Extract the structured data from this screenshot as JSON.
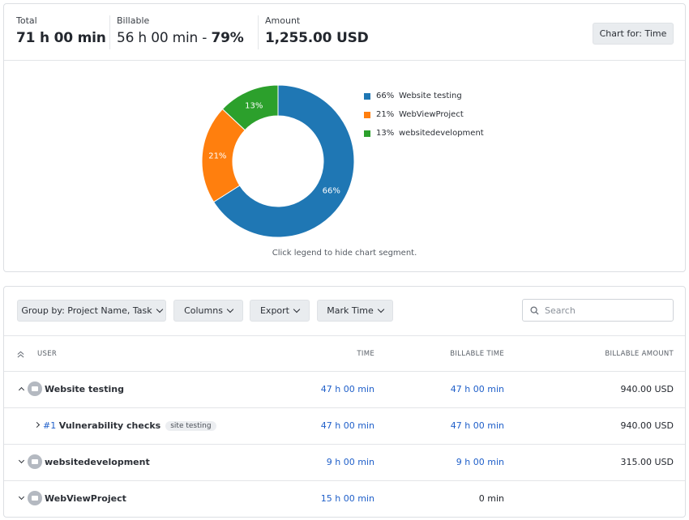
{
  "summary": {
    "total": {
      "label": "Total",
      "value": "71 h 00 min"
    },
    "billable": {
      "label": "Billable",
      "value": "56 h 00 min - ",
      "percent": "79%"
    },
    "amount": {
      "label": "Amount",
      "value": "1,255.00 USD"
    },
    "chart_for_button": "Chart for: Time"
  },
  "chart_data": {
    "type": "pie",
    "donut": true,
    "slices": [
      {
        "name": "Website testing",
        "value": 66,
        "label": "66%",
        "color": "#1f77b4"
      },
      {
        "name": "WebViewProject",
        "value": 21,
        "label": "21%",
        "color": "#ff7f0e"
      },
      {
        "name": "websitedevelopment",
        "value": 13,
        "label": "13%",
        "color": "#2ca02c"
      }
    ],
    "legend_position": "right"
  },
  "legend": [
    {
      "pct": "66%",
      "name": "Website testing",
      "color": "#1f77b4"
    },
    {
      "pct": "21%",
      "name": "WebViewProject",
      "color": "#ff7f0e"
    },
    {
      "pct": "13%",
      "name": "websitedevelopment",
      "color": "#2ca02c"
    }
  ],
  "chart_hint": "Click legend to hide chart segment.",
  "toolbar": {
    "group_by": "Group by: Project Name, Task",
    "columns": "Columns",
    "export": "Export",
    "mark_time": "Mark Time",
    "search_placeholder": "Search"
  },
  "table": {
    "headers": {
      "user": "USER",
      "time": "TIME",
      "billable_time": "BILLABLE TIME",
      "billable_amount": "BILLABLE AMOUNT"
    },
    "rows": [
      {
        "name": "Website testing",
        "time": "47 h 00 min",
        "billable_time": "47 h 00 min",
        "amount": "940.00 USD"
      },
      {
        "task_id": "#1",
        "name": "Vulnerability checks",
        "tag": "site testing",
        "time": "47 h 00 min",
        "billable_time": "47 h 00 min",
        "amount": "940.00 USD"
      },
      {
        "name": "websitedevelopment",
        "time": "9 h 00 min",
        "billable_time": "9 h 00 min",
        "amount": "315.00 USD"
      },
      {
        "name": "WebViewProject",
        "time": "15 h 00 min",
        "billable_time": "0 min",
        "amount": ""
      }
    ]
  },
  "colors": {
    "link": "#1f5fc9",
    "button_bg": "#e9ecef",
    "border": "#dcdfe3"
  }
}
